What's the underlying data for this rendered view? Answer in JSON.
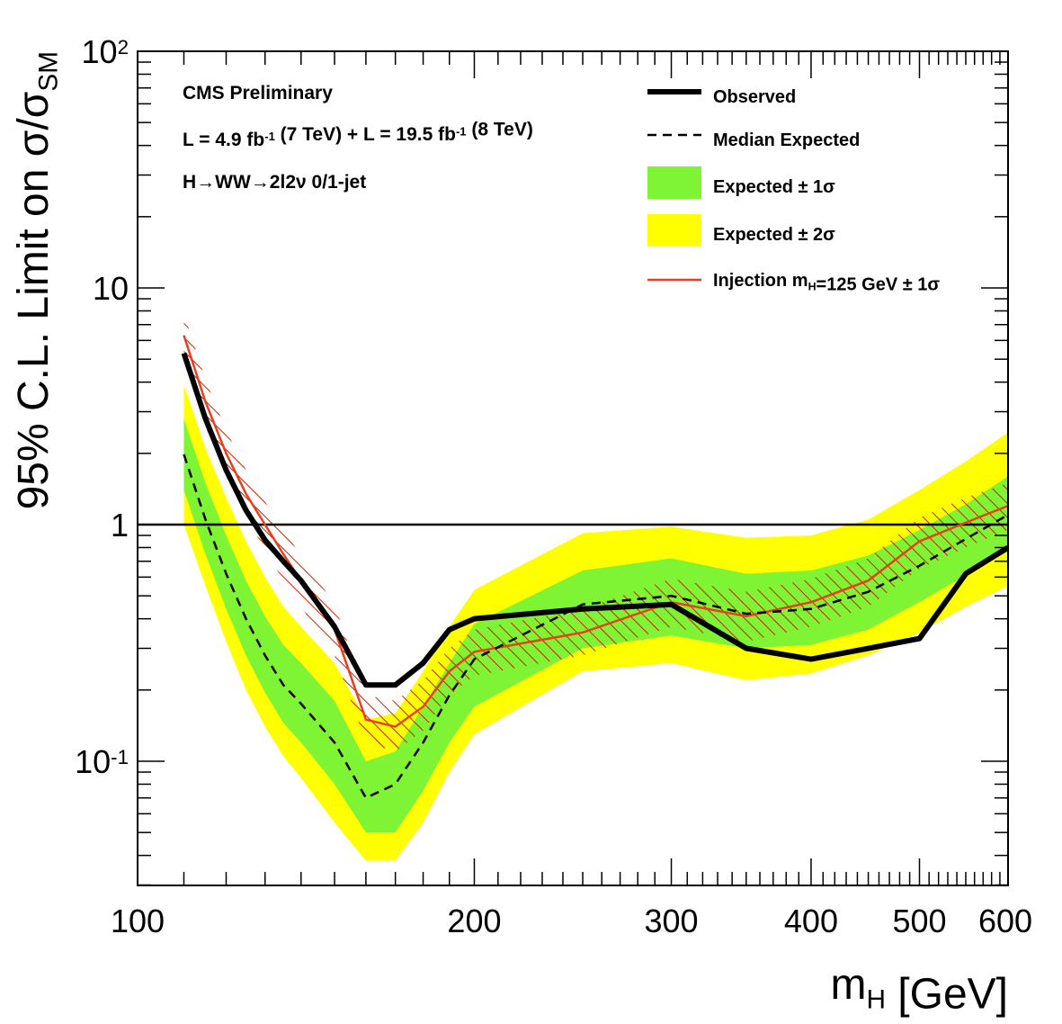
{
  "chart_data": {
    "type": "line",
    "xscale": "log",
    "yscale": "log",
    "xlim": [
      100,
      600
    ],
    "ylim": [
      0.03,
      100
    ],
    "xlabel": {
      "main": "m",
      "sub": "H",
      "suffix": " [GeV]"
    },
    "ylabel": {
      "main": "95% C.L. Limit on σ/σ",
      "sub": "SM"
    },
    "x_ticks": [
      {
        "value": 100,
        "label": "100"
      },
      {
        "value": 200,
        "label": "200"
      },
      {
        "value": 300,
        "label": "300"
      },
      {
        "value": 400,
        "label": "400"
      },
      {
        "value": 500,
        "label": "500"
      },
      {
        "value": 600,
        "label": "600"
      }
    ],
    "y_ticks": [
      {
        "value": 0.1,
        "base": "10",
        "exp": "-1"
      },
      {
        "value": 1,
        "base": "1",
        "exp": ""
      },
      {
        "value": 10,
        "base": "10",
        "exp": ""
      },
      {
        "value": 100,
        "base": "10",
        "exp": "2"
      }
    ],
    "reference_line": 1,
    "x": [
      110,
      115,
      120,
      125,
      130,
      135,
      140,
      150,
      160,
      170,
      180,
      190,
      200,
      250,
      300,
      350,
      400,
      450,
      500,
      550,
      600
    ],
    "series": [
      {
        "name": "Observed",
        "key": "observed",
        "values": [
          5.3,
          2.8,
          1.7,
          1.15,
          0.86,
          0.7,
          0.58,
          0.37,
          0.21,
          0.21,
          0.26,
          0.36,
          0.4,
          0.44,
          0.46,
          0.3,
          0.27,
          0.3,
          0.33,
          0.62,
          0.8
        ]
      },
      {
        "name": "Median Expected",
        "key": "expected",
        "values": [
          1.98,
          1.05,
          0.62,
          0.4,
          0.28,
          0.21,
          0.175,
          0.12,
          0.07,
          0.08,
          0.12,
          0.19,
          0.27,
          0.46,
          0.5,
          0.42,
          0.44,
          0.52,
          0.67,
          0.87,
          1.1
        ]
      },
      {
        "name": "Injection m_H=125 GeV ± 1σ",
        "key": "injection",
        "values": [
          6.3,
          3.3,
          2.0,
          1.35,
          1.0,
          0.75,
          0.58,
          0.36,
          0.15,
          0.14,
          0.17,
          0.24,
          0.29,
          0.35,
          0.47,
          0.41,
          0.47,
          0.58,
          0.85,
          1.02,
          1.2
        ]
      }
    ],
    "bands": {
      "one_sigma": {
        "low": [
          1.4,
          0.75,
          0.44,
          0.28,
          0.195,
          0.145,
          0.12,
          0.08,
          0.05,
          0.05,
          0.075,
          0.12,
          0.17,
          0.3,
          0.34,
          0.3,
          0.31,
          0.36,
          0.47,
          0.61,
          0.77
        ],
        "high": [
          2.8,
          1.5,
          0.9,
          0.58,
          0.41,
          0.31,
          0.26,
          0.18,
          0.1,
          0.11,
          0.17,
          0.26,
          0.38,
          0.64,
          0.72,
          0.62,
          0.64,
          0.74,
          0.95,
          1.22,
          1.6
        ]
      },
      "two_sigma": {
        "low": [
          1.0,
          0.55,
          0.32,
          0.2,
          0.14,
          0.105,
          0.085,
          0.055,
          0.038,
          0.038,
          0.055,
          0.09,
          0.13,
          0.24,
          0.26,
          0.22,
          0.235,
          0.28,
          0.35,
          0.45,
          0.55
        ],
        "high": [
          3.9,
          2.1,
          1.3,
          0.85,
          0.6,
          0.45,
          0.37,
          0.26,
          0.15,
          0.16,
          0.24,
          0.37,
          0.53,
          0.92,
          0.98,
          0.88,
          0.9,
          1.05,
          1.4,
          1.85,
          2.45
        ]
      },
      "injection": {
        "low": [
          4.9,
          2.6,
          1.6,
          1.08,
          0.78,
          0.58,
          0.45,
          0.28,
          0.12,
          0.11,
          0.135,
          0.19,
          0.23,
          0.28,
          0.37,
          0.32,
          0.37,
          0.45,
          0.65,
          0.8,
          0.95
        ],
        "high": [
          7.8,
          4.1,
          2.5,
          1.7,
          1.25,
          0.95,
          0.74,
          0.46,
          0.19,
          0.18,
          0.22,
          0.3,
          0.36,
          0.44,
          0.59,
          0.52,
          0.59,
          0.72,
          1.07,
          1.3,
          1.5
        ]
      }
    },
    "annotations": [
      {
        "key": "experiment",
        "text": "CMS Preliminary"
      },
      {
        "key": "lumi",
        "segments": [
          {
            "t": "L = 4.9 fb"
          },
          {
            "t": "-1",
            "sup": true
          },
          {
            "t": " (7 TeV) + L = 19.5 fb"
          },
          {
            "t": "-1",
            "sup": true
          },
          {
            "t": " (8 TeV)"
          }
        ]
      },
      {
        "key": "channel",
        "text": "H→WW→2l2ν  0/1-jet"
      }
    ],
    "legend": {
      "placement": "top-right",
      "entries": [
        {
          "key": "observed",
          "label": [
            {
              "t": "Observed"
            }
          ]
        },
        {
          "key": "expected",
          "label": [
            {
              "t": "Median Expected"
            }
          ]
        },
        {
          "key": "one_sigma",
          "label": [
            {
              "t": "Expected ± 1σ"
            }
          ]
        },
        {
          "key": "two_sigma",
          "label": [
            {
              "t": "Expected ± 2σ"
            }
          ]
        },
        {
          "key": "injection",
          "label": [
            {
              "t": "Injection m"
            },
            {
              "t": "H",
              "sub": true
            },
            {
              "t": "=125 GeV ± 1σ"
            }
          ]
        }
      ]
    },
    "colors": {
      "observed": "#000000",
      "expected": "#000000",
      "one_sigma": "#7ef434",
      "two_sigma": "#ffff00",
      "injection": "#e8401c",
      "hatch": "#cc2200",
      "reference_line": "#000000"
    }
  }
}
